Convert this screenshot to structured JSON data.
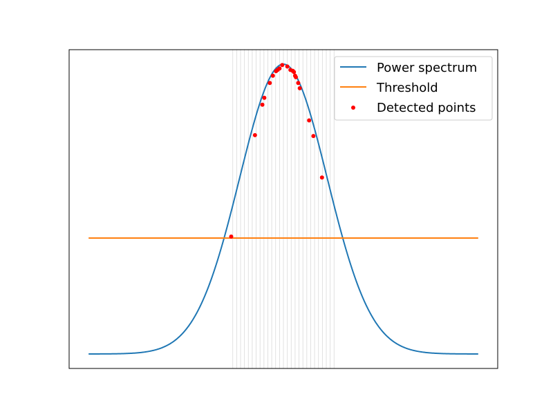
{
  "colors": {
    "power": "#1f77b4",
    "threshold": "#ff7f0e",
    "points": "#ff0000",
    "vlines": "#d9d9d9",
    "axes": "#000000",
    "legend_border": "#cccccc"
  },
  "legend": {
    "position": "top-right",
    "entries": [
      "Power spectrum",
      "Threshold",
      "Detected points"
    ]
  },
  "chart_data": {
    "type": "line",
    "title": "",
    "xlabel": "",
    "ylabel": "",
    "grid": false,
    "xlim": [
      -0.05,
      1.05
    ],
    "ylim": [
      -0.05,
      1.05
    ],
    "ticks_visible": false,
    "series": [
      {
        "name": "Power spectrum",
        "kind": "line",
        "function": "gaussian",
        "x_range": [
          0,
          1
        ],
        "center": 0.5,
        "sigma": 0.1125,
        "baseline": 0.0,
        "peak": 1.0
      },
      {
        "name": "Threshold",
        "kind": "hline",
        "x_range": [
          0,
          1
        ],
        "y": 0.4
      },
      {
        "name": "Detected points",
        "kind": "scatter",
        "points": [
          [
            0.366,
            0.405
          ],
          [
            0.427,
            0.755
          ],
          [
            0.446,
            0.86
          ],
          [
            0.451,
            0.884
          ],
          [
            0.465,
            0.935
          ],
          [
            0.473,
            0.96
          ],
          [
            0.481,
            0.976
          ],
          [
            0.485,
            0.98
          ],
          [
            0.49,
            0.985
          ],
          [
            0.497,
            0.997
          ],
          [
            0.51,
            0.992
          ],
          [
            0.518,
            0.98
          ],
          [
            0.524,
            0.977
          ],
          [
            0.527,
            0.973
          ],
          [
            0.53,
            0.96
          ],
          [
            0.532,
            0.955
          ],
          [
            0.538,
            0.935
          ],
          [
            0.542,
            0.917
          ],
          [
            0.566,
            0.806
          ],
          [
            0.577,
            0.752
          ],
          [
            0.599,
            0.609
          ]
        ]
      },
      {
        "name": "",
        "kind": "vlines",
        "x": [
          0.37,
          0.38,
          0.39,
          0.4,
          0.41,
          0.42,
          0.43,
          0.44,
          0.45,
          0.46,
          0.47,
          0.48,
          0.49,
          0.5,
          0.51,
          0.52,
          0.53,
          0.54,
          0.55,
          0.56,
          0.57,
          0.58,
          0.59,
          0.6,
          0.61,
          0.62,
          0.63
        ]
      }
    ]
  }
}
